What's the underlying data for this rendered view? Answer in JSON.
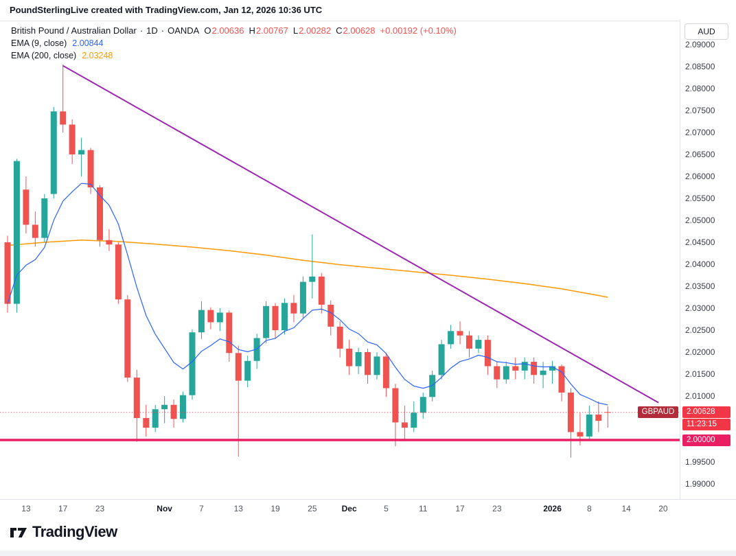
{
  "header": {
    "credit": "PoundSterlingLive created with TradingView.com, Jan 12, 2026 10:36 UTC"
  },
  "legend": {
    "symbol": {
      "title": "British Pound / Australian Dollar",
      "separator": "·",
      "interval": "1D",
      "exchange": "OANDA",
      "ohlc": [
        {
          "l": "O",
          "v": "2.00636"
        },
        {
          "l": "H",
          "v": "2.00767"
        },
        {
          "l": "L",
          "v": "2.00282"
        },
        {
          "l": "C",
          "v": "2.00628"
        }
      ],
      "change": "+0.00192 (+0.10%)"
    },
    "ema9": {
      "label": "EMA (9, close)",
      "value": "2.00844"
    },
    "ema200": {
      "label": "EMA (200, close)",
      "value": "2.03248"
    }
  },
  "price_axis": {
    "currency": "AUD",
    "labels": [
      "2.09000",
      "2.08500",
      "2.08000",
      "2.07500",
      "2.07000",
      "2.06500",
      "2.06000",
      "2.05500",
      "2.05000",
      "2.04500",
      "2.04000",
      "2.03500",
      "2.03000",
      "2.02500",
      "2.02000",
      "2.01500",
      "2.01000",
      "1.99500",
      "1.99000"
    ],
    "price_badge": {
      "symbol": "GBPAUD",
      "price": "2.00628",
      "countdown": "11:23:15"
    },
    "level_badge": "2.00000"
  },
  "time_axis": {
    "labels": [
      {
        "t": "13",
        "i": 2,
        "bold": false
      },
      {
        "t": "17",
        "i": 6,
        "bold": false
      },
      {
        "t": "23",
        "i": 10,
        "bold": false
      },
      {
        "t": "Nov",
        "i": 17,
        "bold": true
      },
      {
        "t": "7",
        "i": 21,
        "bold": false
      },
      {
        "t": "13",
        "i": 25,
        "bold": false
      },
      {
        "t": "19",
        "i": 29,
        "bold": false
      },
      {
        "t": "25",
        "i": 33,
        "bold": false
      },
      {
        "t": "Dec",
        "i": 37,
        "bold": true
      },
      {
        "t": "5",
        "i": 41,
        "bold": false
      },
      {
        "t": "11",
        "i": 45,
        "bold": false
      },
      {
        "t": "17",
        "i": 49,
        "bold": false
      },
      {
        "t": "23",
        "i": 53,
        "bold": false
      },
      {
        "t": "2026",
        "i": 59,
        "bold": true
      },
      {
        "t": "8",
        "i": 63,
        "bold": false
      },
      {
        "t": "14",
        "i": 67,
        "bold": false
      },
      {
        "t": "20",
        "i": 71,
        "bold": false
      }
    ]
  },
  "footer": {
    "brand": "TradingView"
  },
  "colors": {
    "up": "#26a69a",
    "down": "#ef5350",
    "ohlc_value": "#ef5350",
    "ema9": "#2962ff",
    "ema200": "#ff9800",
    "trendline": "#9c27b0",
    "support": "#e91e63",
    "badge_red": "#f23645",
    "badge_symbol_bg": "#b22b38"
  },
  "chart_data": {
    "type": "candlestick",
    "title": "British Pound / Australian Dollar, 1D, OANDA",
    "symbol": "GBPAUD",
    "timeframe": "1D",
    "ylabel": "AUD",
    "ylim": [
      1.9875,
      2.0925
    ],
    "x_visible_range": [
      "Oct 9",
      "Jan 20 (future)"
    ],
    "grid": false,
    "candles": [
      {
        "d": "Oct 9",
        "o": 2.045,
        "h": 2.0465,
        "l": 2.029,
        "c": 2.031
      },
      {
        "d": "Oct 10",
        "o": 2.031,
        "h": 2.064,
        "l": 2.029,
        "c": 2.0635
      },
      {
        "d": "Oct 13",
        "o": 2.057,
        "h": 2.06,
        "l": 2.047,
        "c": 2.049
      },
      {
        "d": "Oct 14",
        "o": 2.049,
        "h": 2.052,
        "l": 2.044,
        "c": 2.046
      },
      {
        "d": "Oct 15",
        "o": 2.046,
        "h": 2.056,
        "l": 2.045,
        "c": 2.055
      },
      {
        "d": "Oct 16",
        "o": 2.056,
        "h": 2.0758,
        "l": 2.055,
        "c": 2.0748
      },
      {
        "d": "Oct 17",
        "o": 2.0748,
        "h": 2.0855,
        "l": 2.07,
        "c": 2.0718
      },
      {
        "d": "Oct 20",
        "o": 2.0718,
        "h": 2.073,
        "l": 2.0628,
        "c": 2.065
      },
      {
        "d": "Oct 21",
        "o": 2.065,
        "h": 2.0688,
        "l": 2.06,
        "c": 2.066
      },
      {
        "d": "Oct 22",
        "o": 2.066,
        "h": 2.0665,
        "l": 2.056,
        "c": 2.0575
      },
      {
        "d": "Oct 23",
        "o": 2.0575,
        "h": 2.058,
        "l": 2.044,
        "c": 2.0455
      },
      {
        "d": "Oct 24",
        "o": 2.0455,
        "h": 2.048,
        "l": 2.043,
        "c": 2.0445
      },
      {
        "d": "Oct 27",
        "o": 2.0445,
        "h": 2.045,
        "l": 2.031,
        "c": 2.032
      },
      {
        "d": "Oct 28",
        "o": 2.032,
        "h": 2.033,
        "l": 2.0132,
        "c": 2.0142
      },
      {
        "d": "Oct 29",
        "o": 2.0142,
        "h": 2.016,
        "l": 1.9996,
        "c": 2.005
      },
      {
        "d": "Oct 30",
        "o": 2.005,
        "h": 2.008,
        "l": 2.0008,
        "c": 2.0028
      },
      {
        "d": "Oct 31",
        "o": 2.0028,
        "h": 2.008,
        "l": 2.0018,
        "c": 2.007
      },
      {
        "d": "Nov 3",
        "o": 2.007,
        "h": 2.01,
        "l": 2.0038,
        "c": 2.008
      },
      {
        "d": "Nov 4",
        "o": 2.008,
        "h": 2.0092,
        "l": 2.0028,
        "c": 2.0048
      },
      {
        "d": "Nov 5",
        "o": 2.0048,
        "h": 2.011,
        "l": 2.004,
        "c": 2.0102
      },
      {
        "d": "Nov 6",
        "o": 2.0102,
        "h": 2.0252,
        "l": 2.0092,
        "c": 2.0245
      },
      {
        "d": "Nov 7",
        "o": 2.0245,
        "h": 2.0316,
        "l": 2.023,
        "c": 2.0296
      },
      {
        "d": "Nov 10",
        "o": 2.0296,
        "h": 2.0302,
        "l": 2.0252,
        "c": 2.0268
      },
      {
        "d": "Nov 11",
        "o": 2.0268,
        "h": 2.03,
        "l": 2.0248,
        "c": 2.029
      },
      {
        "d": "Nov 12",
        "o": 2.029,
        "h": 2.0295,
        "l": 2.0178,
        "c": 2.0198
      },
      {
        "d": "Nov 13",
        "o": 2.0198,
        "h": 2.0215,
        "l": 1.9962,
        "c": 2.0135
      },
      {
        "d": "Nov 14",
        "o": 2.0135,
        "h": 2.0192,
        "l": 2.012,
        "c": 2.018
      },
      {
        "d": "Nov 17",
        "o": 2.018,
        "h": 2.0242,
        "l": 2.0162,
        "c": 2.0232
      },
      {
        "d": "Nov 18",
        "o": 2.0232,
        "h": 2.0316,
        "l": 2.022,
        "c": 2.0305
      },
      {
        "d": "Nov 19",
        "o": 2.0305,
        "h": 2.0312,
        "l": 2.023,
        "c": 2.025
      },
      {
        "d": "Nov 20",
        "o": 2.025,
        "h": 2.0322,
        "l": 2.024,
        "c": 2.0312
      },
      {
        "d": "Nov 21",
        "o": 2.0312,
        "h": 2.033,
        "l": 2.0268,
        "c": 2.0288
      },
      {
        "d": "Nov 24",
        "o": 2.0288,
        "h": 2.0372,
        "l": 2.0278,
        "c": 2.036
      },
      {
        "d": "Nov 25",
        "o": 2.036,
        "h": 2.0468,
        "l": 2.0322,
        "c": 2.0372
      },
      {
        "d": "Nov 26",
        "o": 2.0372,
        "h": 2.038,
        "l": 2.0288,
        "c": 2.0308
      },
      {
        "d": "Nov 27",
        "o": 2.0308,
        "h": 2.0318,
        "l": 2.0238,
        "c": 2.0258
      },
      {
        "d": "Nov 28",
        "o": 2.0258,
        "h": 2.027,
        "l": 2.0188,
        "c": 2.0208
      },
      {
        "d": "Dec 1",
        "o": 2.0208,
        "h": 2.0228,
        "l": 2.0148,
        "c": 2.0168
      },
      {
        "d": "Dec 2",
        "o": 2.0168,
        "h": 2.021,
        "l": 2.015,
        "c": 2.02
      },
      {
        "d": "Dec 3",
        "o": 2.02,
        "h": 2.0208,
        "l": 2.0128,
        "c": 2.0148
      },
      {
        "d": "Dec 4",
        "o": 2.0148,
        "h": 2.02,
        "l": 2.0138,
        "c": 2.019
      },
      {
        "d": "Dec 5",
        "o": 2.019,
        "h": 2.0198,
        "l": 2.0098,
        "c": 2.0118
      },
      {
        "d": "Dec 8",
        "o": 2.0118,
        "h": 2.0128,
        "l": 1.9986,
        "c": 2.004
      },
      {
        "d": "Dec 9",
        "o": 2.004,
        "h": 2.0078,
        "l": 2.0,
        "c": 2.0028
      },
      {
        "d": "Dec 10",
        "o": 2.0028,
        "h": 2.0088,
        "l": 2.0018,
        "c": 2.0062
      },
      {
        "d": "Dec 11",
        "o": 2.0062,
        "h": 2.0108,
        "l": 2.0048,
        "c": 2.0098
      },
      {
        "d": "Dec 12",
        "o": 2.0098,
        "h": 2.0158,
        "l": 2.0088,
        "c": 2.0148
      },
      {
        "d": "Dec 15",
        "o": 2.0148,
        "h": 2.0228,
        "l": 2.0138,
        "c": 2.0218
      },
      {
        "d": "Dec 16",
        "o": 2.0218,
        "h": 2.0262,
        "l": 2.0208,
        "c": 2.0248
      },
      {
        "d": "Dec 17",
        "o": 2.0248,
        "h": 2.027,
        "l": 2.0218,
        "c": 2.0238
      },
      {
        "d": "Dec 18",
        "o": 2.0238,
        "h": 2.0248,
        "l": 2.0188,
        "c": 2.0208
      },
      {
        "d": "Dec 19",
        "o": 2.0208,
        "h": 2.0238,
        "l": 2.0198,
        "c": 2.0228
      },
      {
        "d": "Dec 22",
        "o": 2.0228,
        "h": 2.0238,
        "l": 2.0148,
        "c": 2.0168
      },
      {
        "d": "Dec 23",
        "o": 2.0168,
        "h": 2.0178,
        "l": 2.0118,
        "c": 2.0138
      },
      {
        "d": "Dec 24",
        "o": 2.0138,
        "h": 2.0178,
        "l": 2.0128,
        "c": 2.0168
      },
      {
        "d": "Dec 26",
        "o": 2.0168,
        "h": 2.0188,
        "l": 2.0138,
        "c": 2.0158
      },
      {
        "d": "Dec 29",
        "o": 2.0158,
        "h": 2.0188,
        "l": 2.0138,
        "c": 2.0178
      },
      {
        "d": "Dec 30",
        "o": 2.0178,
        "h": 2.0188,
        "l": 2.0128,
        "c": 2.0148
      },
      {
        "d": "Dec 31",
        "o": 2.0148,
        "h": 2.0178,
        "l": 2.0118,
        "c": 2.0158
      },
      {
        "d": "Jan 2",
        "o": 2.0158,
        "h": 2.018,
        "l": 2.0128,
        "c": 2.0168
      },
      {
        "d": "Jan 5",
        "o": 2.0168,
        "h": 2.0172,
        "l": 2.0088,
        "c": 2.0108
      },
      {
        "d": "Jan 6",
        "o": 2.0108,
        "h": 2.0118,
        "l": 1.996,
        "c": 2.0018
      },
      {
        "d": "Jan 7",
        "o": 2.0018,
        "h": 2.0062,
        "l": 1.9988,
        "c": 2.0008
      },
      {
        "d": "Jan 8",
        "o": 2.0008,
        "h": 2.0078,
        "l": 1.9998,
        "c": 2.0058
      },
      {
        "d": "Jan 9",
        "o": 2.0058,
        "h": 2.0088,
        "l": 2.0018,
        "c": 2.00436
      },
      {
        "d": "Jan 12",
        "o": 2.00636,
        "h": 2.00767,
        "l": 2.00282,
        "c": 2.00628
      }
    ],
    "overlays": {
      "ema9": {
        "period": 9,
        "last_value": 2.00844
      },
      "ema200": {
        "period": 200,
        "last_value": 2.03248,
        "points": [
          {
            "i": 0,
            "v": 2.0443
          },
          {
            "i": 4,
            "v": 2.045
          },
          {
            "i": 8,
            "v": 2.0455
          },
          {
            "i": 12,
            "v": 2.0452
          },
          {
            "i": 16,
            "v": 2.0446
          },
          {
            "i": 20,
            "v": 2.0439
          },
          {
            "i": 24,
            "v": 2.0431
          },
          {
            "i": 28,
            "v": 2.0421
          },
          {
            "i": 32,
            "v": 2.0409
          },
          {
            "i": 36,
            "v": 2.0399
          },
          {
            "i": 40,
            "v": 2.0391
          },
          {
            "i": 44,
            "v": 2.0383
          },
          {
            "i": 48,
            "v": 2.0375
          },
          {
            "i": 52,
            "v": 2.0366
          },
          {
            "i": 56,
            "v": 2.0356
          },
          {
            "i": 60,
            "v": 2.0344
          },
          {
            "i": 65,
            "v": 2.0325
          }
        ]
      },
      "trendline": {
        "from": {
          "i": 6,
          "price": 2.0852
        },
        "to": {
          "i": 70.5,
          "price": 2.0085
        }
      },
      "support_line": {
        "price": 2.0
      },
      "last_price_line": {
        "price": 2.00628
      }
    }
  }
}
